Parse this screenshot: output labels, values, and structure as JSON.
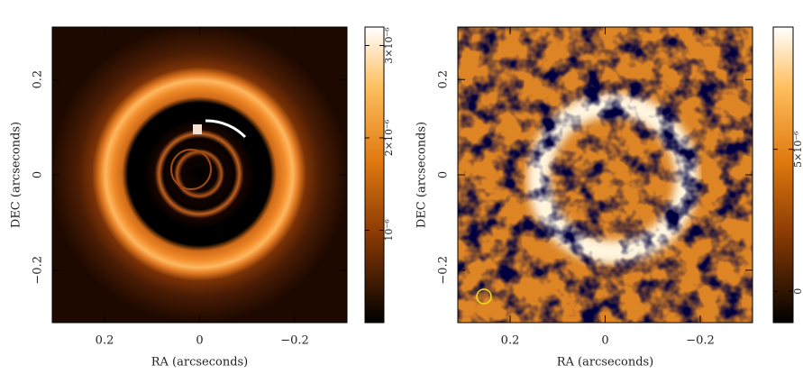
{
  "chart_data": [
    {
      "type": "image",
      "xlabel": "RA (arcseconds)",
      "ylabel": "DEC (arcseconds)",
      "xlim": [
        0.31,
        -0.31
      ],
      "ylim": [
        -0.31,
        0.31
      ],
      "xticks": [
        0.2,
        0,
        {
          "value": -0.2,
          "label": "−0.2"
        }
      ],
      "yticks": [
        {
          "value": -0.2,
          "label": "−0.2"
        },
        0,
        0.2
      ],
      "clim": [
        0,
        3.2e-06
      ],
      "cticks": [
        {
          "value": 1e-06,
          "label": "10⁻⁶"
        },
        {
          "value": 2e-06,
          "label": "2×10⁻⁶"
        },
        {
          "value": 3e-06,
          "label": "3×10⁻⁶"
        }
      ]
    },
    {
      "type": "image",
      "xlabel": "RA (arcseconds)",
      "ylabel": "DEC (arcseconds)",
      "xlim": [
        0.31,
        -0.31
      ],
      "ylim": [
        -0.31,
        0.31
      ],
      "xticks": [
        0.2,
        0,
        {
          "value": -0.2,
          "label": "−0.2"
        }
      ],
      "yticks": [
        {
          "value": -0.2,
          "label": "−0.2"
        },
        0,
        0.2
      ],
      "clim": [
        -1.1e-06,
        9.3e-06
      ],
      "cticks": [
        0,
        {
          "value": 5e-06,
          "label": "5×10⁻⁶"
        }
      ]
    }
  ]
}
